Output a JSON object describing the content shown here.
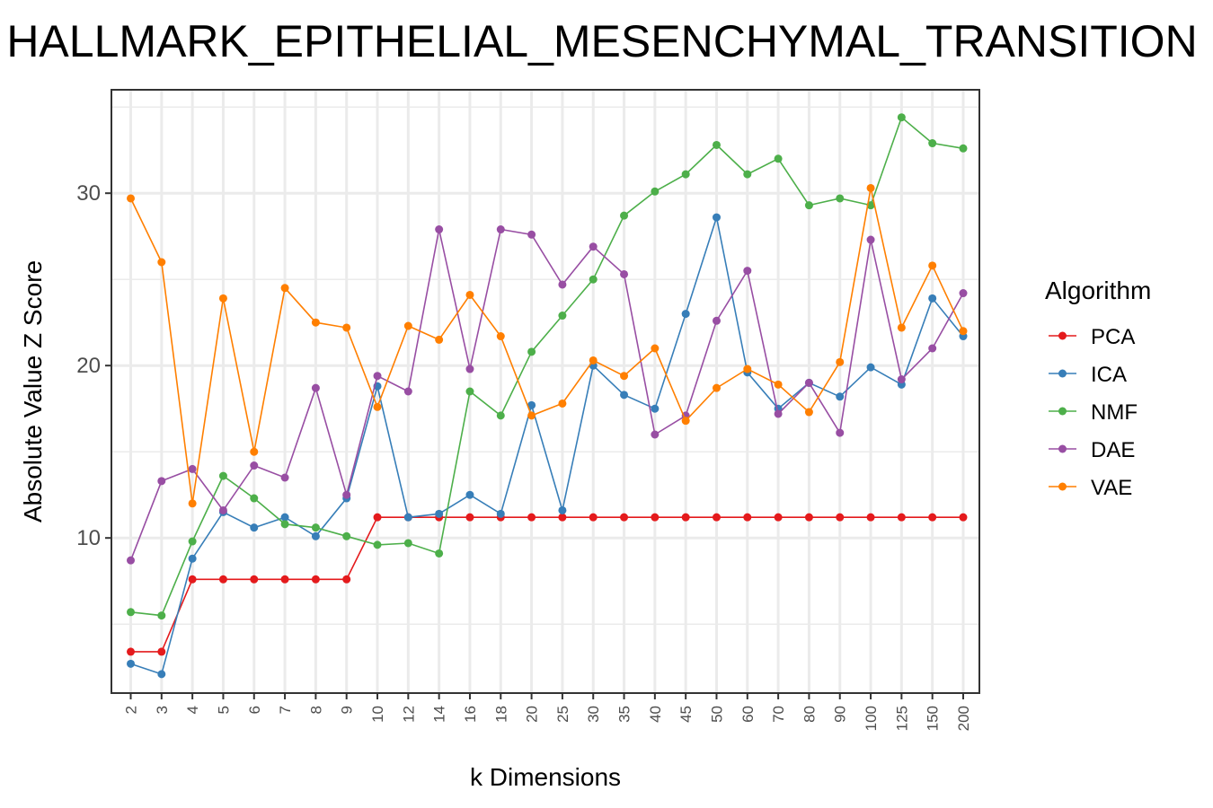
{
  "chart_data": {
    "type": "line",
    "title": "HALLMARK_EPITHELIAL_MESENCHYMAL_TRANSITION",
    "xlabel": "k Dimensions",
    "ylabel": "Absolute Value Z Score",
    "categories": [
      "2",
      "3",
      "4",
      "5",
      "6",
      "7",
      "8",
      "9",
      "10",
      "12",
      "14",
      "16",
      "18",
      "20",
      "25",
      "30",
      "35",
      "40",
      "45",
      "50",
      "60",
      "70",
      "80",
      "90",
      "100",
      "125",
      "150",
      "200"
    ],
    "ylim": [
      1,
      36
    ],
    "yticks": [
      10,
      20,
      30
    ],
    "grid": true,
    "legend": {
      "title": "Algorithm",
      "position": "right"
    },
    "series": [
      {
        "name": "PCA",
        "color": "#e41a1c",
        "values": [
          3.4,
          3.4,
          7.6,
          7.6,
          7.6,
          7.6,
          7.6,
          7.6,
          11.2,
          11.2,
          11.2,
          11.2,
          11.2,
          11.2,
          11.2,
          11.2,
          11.2,
          11.2,
          11.2,
          11.2,
          11.2,
          11.2,
          11.2,
          11.2,
          11.2,
          11.2,
          11.2,
          11.2
        ]
      },
      {
        "name": "ICA",
        "color": "#377eb8",
        "values": [
          2.7,
          2.1,
          8.8,
          11.5,
          10.6,
          11.2,
          10.1,
          12.3,
          18.8,
          11.2,
          11.4,
          12.5,
          11.4,
          17.7,
          11.6,
          20.0,
          18.3,
          17.5,
          23.0,
          28.6,
          19.6,
          17.5,
          19.0,
          18.2,
          19.9,
          18.9,
          23.9,
          21.7
        ]
      },
      {
        "name": "NMF",
        "color": "#4daf4a",
        "values": [
          5.7,
          5.5,
          9.8,
          13.6,
          12.3,
          10.8,
          10.6,
          10.1,
          9.6,
          9.7,
          9.1,
          18.5,
          17.1,
          20.8,
          22.9,
          25.0,
          28.7,
          30.1,
          31.1,
          32.8,
          31.1,
          32.0,
          29.3,
          29.7,
          29.3,
          34.4,
          32.9,
          32.6
        ]
      },
      {
        "name": "DAE",
        "color": "#984ea3",
        "values": [
          8.7,
          13.3,
          14.0,
          11.6,
          14.2,
          13.5,
          18.7,
          12.5,
          19.4,
          18.5,
          27.9,
          19.8,
          27.9,
          27.6,
          24.7,
          26.9,
          25.3,
          16.0,
          17.1,
          22.6,
          25.5,
          17.2,
          19.0,
          16.1,
          27.3,
          19.2,
          21.0,
          24.2
        ]
      },
      {
        "name": "VAE",
        "color": "#ff7f00",
        "values": [
          29.7,
          26.0,
          12.0,
          23.9,
          15.0,
          24.5,
          22.5,
          22.2,
          17.6,
          22.3,
          21.5,
          24.1,
          21.7,
          17.1,
          17.8,
          20.3,
          19.4,
          21.0,
          16.8,
          18.7,
          19.8,
          18.9,
          17.3,
          20.2,
          30.3,
          22.2,
          25.8,
          22.0
        ]
      }
    ]
  }
}
